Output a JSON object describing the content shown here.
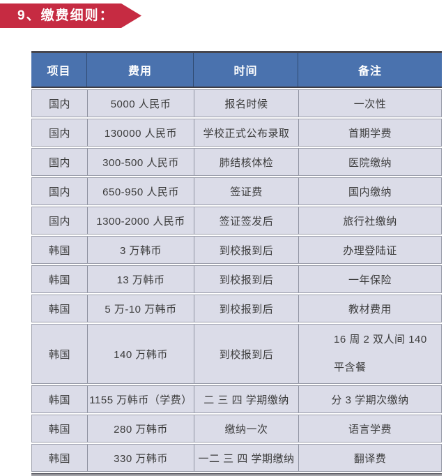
{
  "banner": {
    "label": "9、缴费细则：",
    "color": "#c62b42"
  },
  "table": {
    "header_bg": "#4a72ae",
    "row_bg": "#dbdce8",
    "headers": [
      "项目",
      "费用",
      "时间",
      "备注"
    ],
    "rows": [
      {
        "item": "国内",
        "fee": "5000 人民币",
        "time": "报名时候",
        "remark": "一次性"
      },
      {
        "item": "国内",
        "fee": "130000 人民币",
        "time": "学校正式公布录取",
        "remark": "首期学费"
      },
      {
        "item": "国内",
        "fee": "300-500 人民币",
        "time": "肺结核体检",
        "remark": "医院缴纳"
      },
      {
        "item": "国内",
        "fee": "650-950 人民币",
        "time": "签证费",
        "remark": "国内缴纳"
      },
      {
        "item": "国内",
        "fee": "1300-2000 人民币",
        "time": "签证签发后",
        "remark": "旅行社缴纳"
      },
      {
        "item": "韩国",
        "fee": "3 万韩币",
        "time": "到校报到后",
        "remark": "办理登陆证"
      },
      {
        "item": "韩国",
        "fee": "13 万韩币",
        "time": "到校报到后",
        "remark": "一年保险"
      },
      {
        "item": "韩国",
        "fee": "5 万-10 万韩币",
        "time": "到校报到后",
        "remark": "教材费用"
      },
      {
        "item": "韩国",
        "fee": "140 万韩币",
        "time": "到校报到后",
        "remark": "16 周 2 双人间  140\n平含餐"
      },
      {
        "item": "韩国",
        "fee": "1155 万韩币（学费）",
        "time": "二 三 四 学期缴纳",
        "remark": "分 3 学期次缴纳"
      },
      {
        "item": "韩国",
        "fee": "280 万韩币",
        "time": "缴纳一次",
        "remark": "语言学费"
      },
      {
        "item": "韩国",
        "fee": "330 万韩币",
        "time": "一二 三 四 学期缴纳",
        "remark": "翻译费"
      }
    ]
  }
}
